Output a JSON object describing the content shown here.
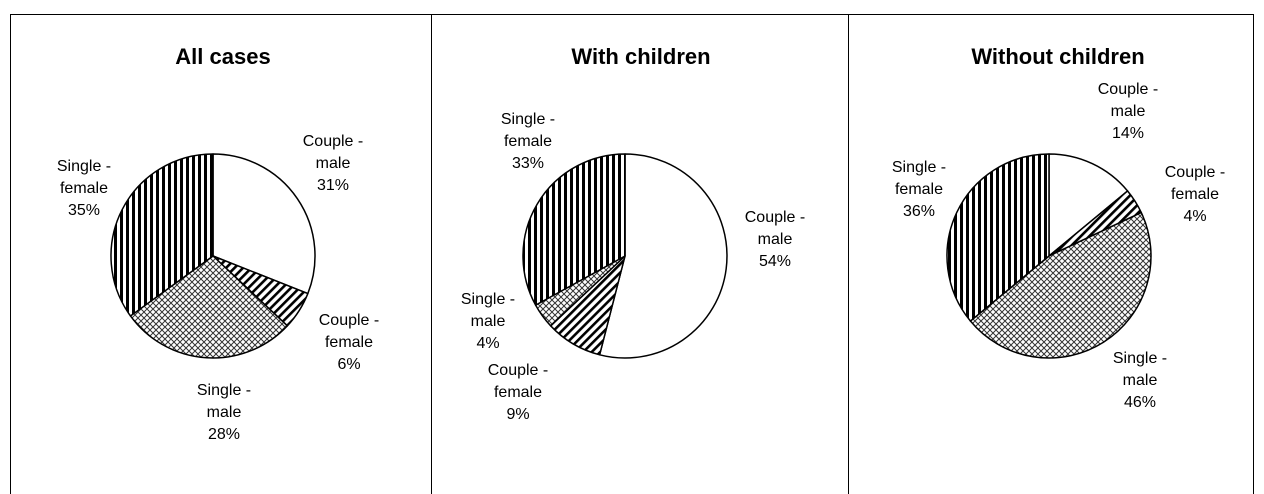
{
  "chart_data": [
    {
      "type": "pie",
      "title": "All cases",
      "slices": [
        {
          "label": [
            "Couple -",
            "male",
            "31%"
          ],
          "value": 31,
          "pattern": "white"
        },
        {
          "label": [
            "Couple -",
            "female",
            "6%"
          ],
          "value": 6,
          "pattern": "diagonal"
        },
        {
          "label": [
            "Single -",
            "male",
            "28%"
          ],
          "value": 28,
          "pattern": "crosshatch"
        },
        {
          "label": [
            "Single -",
            "female",
            "35%"
          ],
          "value": 35,
          "pattern": "vertical"
        }
      ]
    },
    {
      "type": "pie",
      "title": "With children",
      "slices": [
        {
          "label": [
            "Couple -",
            "male",
            "54%"
          ],
          "value": 54,
          "pattern": "white"
        },
        {
          "label": [
            "Couple -",
            "female",
            "9%"
          ],
          "value": 9,
          "pattern": "diagonal"
        },
        {
          "label": [
            "Single -",
            "male",
            "4%"
          ],
          "value": 4,
          "pattern": "crosshatch"
        },
        {
          "label": [
            "Single -",
            "female",
            "33%"
          ],
          "value": 33,
          "pattern": "vertical"
        }
      ]
    },
    {
      "type": "pie",
      "title": "Without children",
      "slices": [
        {
          "label": [
            "Couple -",
            "male",
            "14%"
          ],
          "value": 14,
          "pattern": "white"
        },
        {
          "label": [
            "Couple -",
            "female",
            "4%"
          ],
          "value": 4,
          "pattern": "diagonal"
        },
        {
          "label": [
            "Single -",
            "male",
            "46%"
          ],
          "value": 46,
          "pattern": "crosshatch"
        },
        {
          "label": [
            "Single -",
            "female",
            "36%"
          ],
          "value": 36,
          "pattern": "vertical"
        }
      ]
    }
  ],
  "colors": {
    "stroke": "#000000",
    "background": "#ffffff"
  }
}
